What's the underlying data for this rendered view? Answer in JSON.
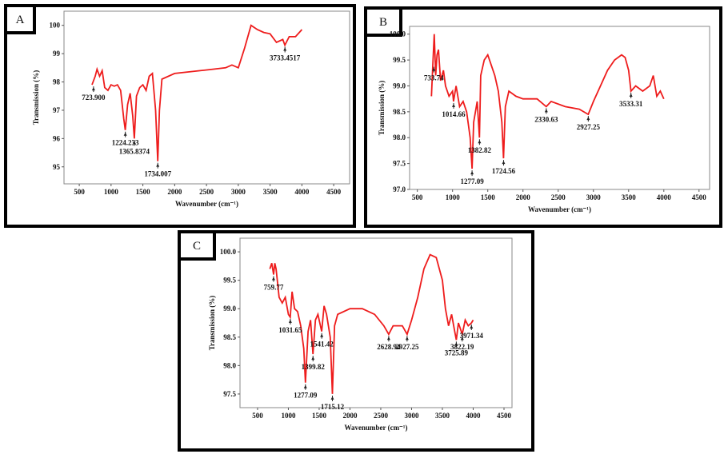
{
  "chart_data": [
    {
      "type": "line",
      "panel": "A",
      "xlabel": "Wavenumber (cm⁻¹)",
      "ylabel": "Transmission (%)",
      "color": "#ee1c1c",
      "xlim": [
        260,
        4750
      ],
      "ylim": [
        94.4,
        100.5
      ],
      "xticks": [
        500,
        1000,
        1500,
        2000,
        2500,
        3000,
        3500,
        4000,
        4500
      ],
      "yticks": [
        95,
        96,
        97,
        98,
        99,
        100
      ],
      "x": [
        700,
        750,
        780,
        820,
        860,
        900,
        950,
        1000,
        1050,
        1100,
        1150,
        1200,
        1224,
        1260,
        1300,
        1340,
        1366,
        1400,
        1450,
        1500,
        1550,
        1600,
        1650,
        1700,
        1734,
        1760,
        1800,
        2000,
        2200,
        2400,
        2600,
        2800,
        2900,
        3000,
        3100,
        3200,
        3300,
        3400,
        3500,
        3600,
        3700,
        3733,
        3800,
        3900,
        4000
      ],
      "values": [
        97.9,
        98.2,
        98.45,
        98.2,
        98.4,
        97.8,
        97.7,
        97.9,
        97.85,
        97.9,
        97.7,
        96.7,
        96.3,
        97.2,
        97.6,
        96.8,
        96.0,
        97.5,
        97.8,
        97.9,
        97.7,
        98.2,
        98.3,
        97.0,
        95.2,
        97.0,
        98.1,
        98.3,
        98.35,
        98.4,
        98.45,
        98.5,
        98.6,
        98.5,
        99.2,
        100.0,
        99.85,
        99.75,
        99.7,
        99.4,
        99.5,
        99.3,
        99.6,
        99.6,
        99.85
      ],
      "annotations": [
        {
          "label": "723.900",
          "x": 723.9,
          "y": 97.9
        },
        {
          "label": "1224.233",
          "x": 1224.233,
          "y": 96.3
        },
        {
          "label": "1365.8374",
          "x": 1365.8374,
          "y": 96.0
        },
        {
          "label": "1734.007",
          "x": 1734.007,
          "y": 95.2
        },
        {
          "label": "3733.4517",
          "x": 3733.4517,
          "y": 99.3
        }
      ]
    },
    {
      "type": "line",
      "panel": "B",
      "xlabel": "Wavenumber (cm⁻¹)",
      "ylabel": "Transmission (%)",
      "color": "#ee1c1c",
      "xlim": [
        390,
        4650
      ],
      "ylim": [
        97,
        100.15
      ],
      "xticks": [
        500,
        1000,
        1500,
        2000,
        2500,
        3000,
        3500,
        4000,
        4500
      ],
      "yticks": [
        {
          "value": 97,
          "label": "97.0"
        },
        {
          "value": 97.5,
          "label": "97.5"
        },
        {
          "value": 98,
          "label": "98.0"
        },
        {
          "value": 98.5,
          "label": "98.5"
        },
        {
          "value": 99,
          "label": "99.0"
        },
        {
          "value": 99.5,
          "label": "99.5"
        },
        {
          "value": 100,
          "label": "100.0"
        }
      ],
      "x": [
        700,
        720,
        740,
        760,
        780,
        800,
        830,
        870,
        900,
        950,
        1000,
        1014,
        1050,
        1100,
        1150,
        1200,
        1250,
        1277,
        1300,
        1350,
        1382,
        1400,
        1450,
        1500,
        1550,
        1600,
        1650,
        1700,
        1724,
        1750,
        1800,
        1900,
        2000,
        2200,
        2330,
        2400,
        2600,
        2800,
        2927,
        3000,
        3100,
        3200,
        3300,
        3400,
        3450,
        3500,
        3533,
        3600,
        3700,
        3800,
        3850,
        3900,
        3950,
        4000
      ],
      "values": [
        98.8,
        99.4,
        100.0,
        99.2,
        99.6,
        99.7,
        99.1,
        99.3,
        99.0,
        98.8,
        98.9,
        98.7,
        99.0,
        98.6,
        98.7,
        98.5,
        98.0,
        97.4,
        98.3,
        98.7,
        98.0,
        99.2,
        99.5,
        99.6,
        99.4,
        99.2,
        98.9,
        98.3,
        97.6,
        98.6,
        98.9,
        98.8,
        98.75,
        98.75,
        98.6,
        98.7,
        98.6,
        98.55,
        98.45,
        98.7,
        99.0,
        99.3,
        99.5,
        99.6,
        99.55,
        99.3,
        98.9,
        99.0,
        98.9,
        99.0,
        99.2,
        98.8,
        98.9,
        98.75
      ],
      "annotations": [
        {
          "label": "733.74",
          "x": 733.74,
          "y": 99.4
        },
        {
          "label": "1014.66",
          "x": 1014.66,
          "y": 98.7
        },
        {
          "label": "1277.09",
          "x": 1277.09,
          "y": 97.4
        },
        {
          "label": "1382.82",
          "x": 1382.82,
          "y": 98.0
        },
        {
          "label": "1724.56",
          "x": 1724.56,
          "y": 97.6
        },
        {
          "label": "2330.63",
          "x": 2330.63,
          "y": 98.6
        },
        {
          "label": "2927.25",
          "x": 2927.25,
          "y": 98.45
        },
        {
          "label": "3533.31",
          "x": 3533.31,
          "y": 98.9
        }
      ]
    },
    {
      "type": "line",
      "panel": "C",
      "xlabel": "Wavenumber (cm⁻¹)",
      "ylabel": "Transmission (%)",
      "color": "#ee1c1c",
      "xlim": [
        215,
        4630
      ],
      "ylim": [
        97.26,
        100.24
      ],
      "xticks": [
        500,
        1000,
        1500,
        2000,
        2500,
        3000,
        3500,
        4000,
        4500
      ],
      "yticks": [
        {
          "value": 97.5,
          "label": "97.5"
        },
        {
          "value": 98,
          "label": "98.0"
        },
        {
          "value": 98.5,
          "label": "98.5"
        },
        {
          "value": 99,
          "label": "99.0"
        },
        {
          "value": 99.5,
          "label": "99.5"
        },
        {
          "value": 100,
          "label": "100.0"
        }
      ],
      "x": [
        700,
        730,
        760,
        780,
        800,
        850,
        900,
        950,
        1000,
        1031,
        1060,
        1100,
        1150,
        1200,
        1250,
        1277,
        1320,
        1360,
        1399,
        1440,
        1480,
        1541,
        1580,
        1620,
        1680,
        1715,
        1750,
        1800,
        2000,
        2200,
        2400,
        2550,
        2629,
        2700,
        2850,
        2927,
        3000,
        3100,
        3200,
        3300,
        3400,
        3500,
        3550,
        3600,
        3650,
        3700,
        3726,
        3760,
        3822,
        3870,
        3920,
        3971,
        4000
      ],
      "values": [
        99.7,
        99.8,
        99.6,
        99.8,
        99.7,
        99.2,
        99.1,
        99.2,
        98.9,
        98.85,
        99.3,
        99.0,
        98.95,
        98.7,
        98.3,
        97.7,
        98.6,
        98.8,
        98.2,
        98.8,
        98.9,
        98.6,
        99.05,
        98.9,
        98.5,
        97.5,
        98.7,
        98.9,
        99.0,
        99.0,
        98.9,
        98.7,
        98.55,
        98.7,
        98.7,
        98.55,
        98.8,
        99.2,
        99.7,
        99.95,
        99.9,
        99.5,
        99.0,
        98.7,
        98.9,
        98.6,
        98.45,
        98.75,
        98.55,
        98.8,
        98.7,
        98.75,
        98.8
      ],
      "annotations": [
        {
          "label": "759.77",
          "x": 759.77,
          "y": 99.6
        },
        {
          "label": "1031.65",
          "x": 1031.65,
          "y": 98.85
        },
        {
          "label": "1277.09",
          "x": 1277.09,
          "y": 97.7
        },
        {
          "label": "1399.82",
          "x": 1399.82,
          "y": 98.2
        },
        {
          "label": "1541.42",
          "x": 1541.42,
          "y": 98.6
        },
        {
          "label": "1715.12",
          "x": 1715.12,
          "y": 97.5
        },
        {
          "label": "2628.94",
          "x": 2628.94,
          "y": 98.55
        },
        {
          "label": "2927.25",
          "x": 2927.25,
          "y": 98.55
        },
        {
          "label": "3725.89",
          "x": 3725.89,
          "y": 98.45
        },
        {
          "label": "3822.19",
          "x": 3822.19,
          "y": 98.55
        },
        {
          "label": "3971.34",
          "x": 3971.34,
          "y": 98.75
        }
      ]
    }
  ]
}
